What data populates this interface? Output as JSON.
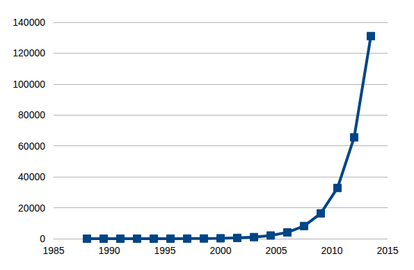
{
  "chart_data": {
    "type": "line",
    "x": [
      1988,
      1989.5,
      1991,
      1992.5,
      1994,
      1995.5,
      1997,
      1998.5,
      2000,
      2001.5,
      2003,
      2004.5,
      2006,
      2007.5,
      2009,
      2010.5,
      2012,
      2013.5
    ],
    "values": [
      1,
      2,
      4,
      8,
      16,
      32,
      64,
      128,
      256,
      512,
      1024,
      2048,
      4096,
      8192,
      16384,
      32768,
      65536,
      131072
    ],
    "color": "#004586",
    "marker": "square",
    "xlim": [
      1985,
      2015
    ],
    "xticks": [
      1985,
      1990,
      1995,
      2000,
      2005,
      2010,
      2015
    ],
    "ylim": [
      0,
      140000
    ],
    "yticks": [
      0,
      20000,
      40000,
      60000,
      80000,
      100000,
      120000,
      140000
    ],
    "grid": true
  }
}
